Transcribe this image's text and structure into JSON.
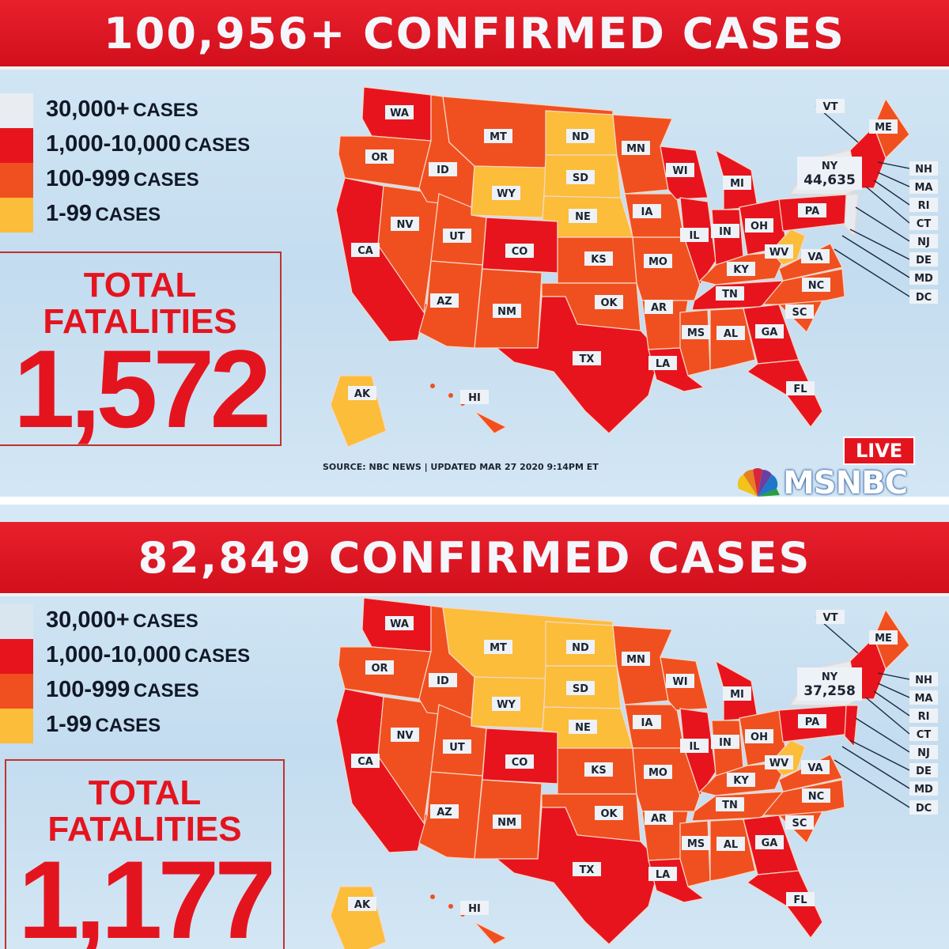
{
  "colors": {
    "tier_30000_plus": "#e6ebf1",
    "tier_1000_10000": "#e8141d",
    "tier_100_999": "#f0501f",
    "tier_1_99": "#fbbd3a",
    "banner_red": "#e4141f"
  },
  "panels": [
    {
      "headline": "100,956+ CONFIRMED CASES",
      "legend": [
        {
          "value": "30,000+",
          "unit": "CASES"
        },
        {
          "value": "1,000-10,000",
          "unit": "CASES"
        },
        {
          "value": "100-999",
          "unit": "CASES"
        },
        {
          "value": "1-99",
          "unit": "CASES"
        }
      ],
      "fatalities_label_1": "TOTAL",
      "fatalities_label_2": "FATALITIES",
      "fatalities_value": "1,572",
      "ny_label": "NY",
      "ny_cases": "44,635",
      "source": "SOURCE: NBC NEWS | UPDATED MAR 27 2020 9:14PM ET",
      "live": "LIVE",
      "network": "MSNBC",
      "tiers": {
        "WA": "t1000",
        "OR": "t100",
        "CA": "t1000",
        "NV": "t100",
        "ID": "t100",
        "MT": "t100",
        "WY": "t1",
        "UT": "t100",
        "AZ": "t100",
        "CO": "t1000",
        "NM": "t100",
        "ND": "t1",
        "SD": "t1",
        "NE": "t1",
        "KS": "t100",
        "OK": "t100",
        "TX": "t1000",
        "MN": "t100",
        "IA": "t100",
        "MO": "t100",
        "AR": "t100",
        "LA": "t1000",
        "WI": "t1000",
        "IL": "t1000",
        "MI": "t1000",
        "IN": "t1000",
        "OH": "t1000",
        "KY": "t100",
        "TN": "t1000",
        "MS": "t100",
        "AL": "t100",
        "GA": "t1000",
        "FL": "t1000",
        "SC": "t100",
        "NC": "t100",
        "VA": "t100",
        "WV": "t1",
        "PA": "t1000",
        "NY": "t30000",
        "ME": "t100",
        "NE_US": "t1000",
        "NJ": "t30000",
        "AK": "t1",
        "HI": "t100"
      }
    },
    {
      "headline": "82,849 CONFIRMED CASES",
      "legend": [
        {
          "value": "30,000+",
          "unit": "CASES"
        },
        {
          "value": "1,000-10,000",
          "unit": "CASES"
        },
        {
          "value": "100-999",
          "unit": "CASES"
        },
        {
          "value": "1-99",
          "unit": "CASES"
        }
      ],
      "fatalities_label_1": "TOTAL",
      "fatalities_label_2": "FATALITIES",
      "fatalities_value": "1,177",
      "ny_label": "NY",
      "ny_cases": "37,258",
      "tiers": {
        "WA": "t1000",
        "OR": "t100",
        "CA": "t1000",
        "NV": "t100",
        "ID": "t100",
        "MT": "t1",
        "WY": "t1",
        "UT": "t100",
        "AZ": "t100",
        "CO": "t1000",
        "NM": "t100",
        "ND": "t1",
        "SD": "t1",
        "NE": "t1",
        "KS": "t100",
        "OK": "t100",
        "TX": "t1000",
        "MN": "t100",
        "IA": "t100",
        "MO": "t100",
        "AR": "t100",
        "LA": "t1000",
        "WI": "t100",
        "IL": "t1000",
        "MI": "t1000",
        "IN": "t100",
        "OH": "t100",
        "KY": "t100",
        "TN": "t100",
        "MS": "t100",
        "AL": "t100",
        "GA": "t1000",
        "FL": "t1000",
        "SC": "t100",
        "NC": "t100",
        "VA": "t100",
        "WV": "t1",
        "PA": "t1000",
        "NY": "t30000",
        "ME": "t100",
        "NE_US": "t1000",
        "NJ": "t1000",
        "AK": "t1",
        "HI": "t100"
      }
    }
  ],
  "state_labels": [
    "WA",
    "OR",
    "CA",
    "NV",
    "ID",
    "MT",
    "WY",
    "UT",
    "AZ",
    "CO",
    "NM",
    "ND",
    "SD",
    "NE",
    "KS",
    "OK",
    "TX",
    "MN",
    "IA",
    "MO",
    "AR",
    "LA",
    "WI",
    "IL",
    "MI",
    "IN",
    "OH",
    "KY",
    "TN",
    "MS",
    "AL",
    "GA",
    "FL",
    "SC",
    "NC",
    "VA",
    "WV",
    "PA",
    "ME",
    "AK",
    "HI"
  ],
  "northeast_labels": [
    "VT",
    "NH",
    "MA",
    "RI",
    "CT",
    "NJ",
    "DE",
    "MD",
    "DC"
  ]
}
